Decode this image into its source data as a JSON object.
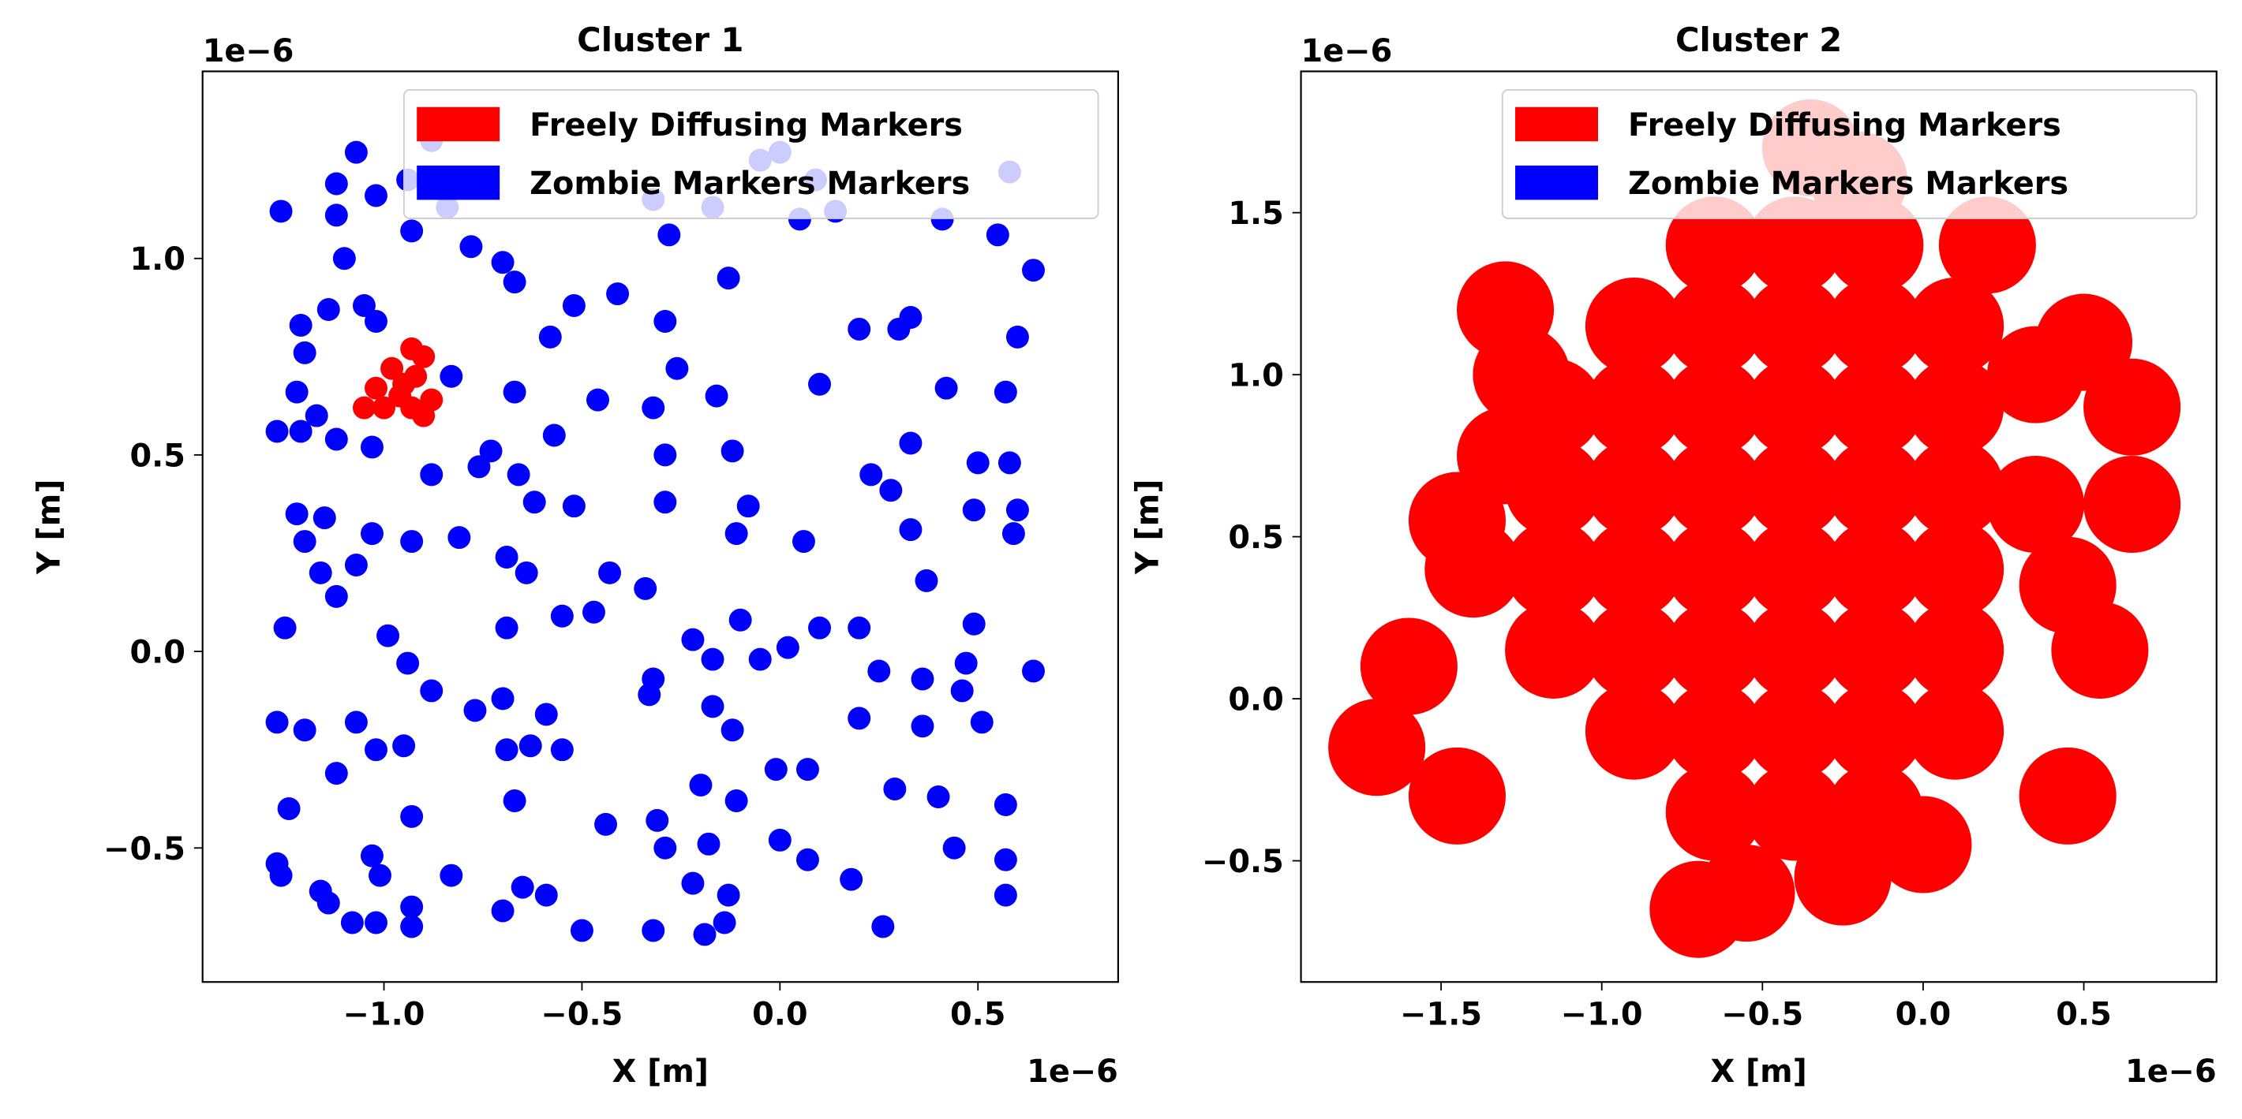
{
  "chart_data": [
    {
      "type": "scatter",
      "title": "Cluster 1",
      "xlabel": "X [m]",
      "ylabel": "Y [m]",
      "x_offset_text": "1e−6",
      "y_offset_text": "1e−6",
      "xlim": [
        -1.458,
        0.854
      ],
      "ylim": [
        -0.841,
        1.476
      ],
      "xticks": [
        {
          "value": -1.0,
          "label": "−1.0"
        },
        {
          "value": -0.5,
          "label": "−0.5"
        },
        {
          "value": 0.0,
          "label": "0.0"
        },
        0.5
      ],
      "yticks": [
        {
          "value": -0.5,
          "label": "−0.5"
        },
        {
          "value": 0.0,
          "label": "0.0"
        },
        0.5,
        {
          "value": 1.0,
          "label": "1.0"
        }
      ],
      "legend": "upper right",
      "series": [
        {
          "name": "Freely Diffusing Markers",
          "color": "#ff0000",
          "x": [
            -1.05,
            -1.02,
            -0.98,
            -0.96,
            -0.93,
            -0.9,
            -0.92,
            -0.93,
            -0.9,
            -0.88,
            -1.0,
            -0.95
          ],
          "y": [
            0.62,
            0.67,
            0.72,
            0.65,
            0.62,
            0.6,
            0.7,
            0.77,
            0.75,
            0.64,
            0.62,
            0.68
          ]
        },
        {
          "name": "Zombie Markers Markers",
          "color": "#0000ff",
          "x": [
            -1.07,
            -1.26,
            -1.12,
            -1.02,
            -0.94,
            -0.88,
            -0.84,
            -1.12,
            -1.1,
            -1.14,
            -1.21,
            -1.05,
            -1.02,
            -0.93,
            -0.78,
            -0.7,
            -0.67,
            -0.58,
            -0.52,
            -0.41,
            -0.32,
            -0.28,
            -0.29,
            -0.17,
            -0.13,
            -0.05,
            0.0,
            0.05,
            0.09,
            0.2,
            0.14,
            0.3,
            0.33,
            0.41,
            0.42,
            0.55,
            0.58,
            0.64,
            0.6,
            0.57,
            -1.2,
            -1.22,
            -1.17,
            -1.27,
            -1.21,
            -1.12,
            -1.03,
            -0.88,
            -0.76,
            -0.66,
            -0.57,
            -0.46,
            -0.52,
            -0.62,
            -0.73,
            -0.67,
            -0.83,
            -0.32,
            -0.29,
            -0.26,
            -0.16,
            -0.12,
            -0.08,
            -0.11,
            0.06,
            0.1,
            0.23,
            0.28,
            0.33,
            0.33,
            0.5,
            0.58,
            0.49,
            0.6,
            0.59,
            -1.22,
            -1.15,
            -1.2,
            -1.03,
            -0.93,
            -0.81,
            -0.69,
            -0.64,
            -0.43,
            -0.34,
            -0.29,
            -1.16,
            -1.12,
            -1.07,
            -1.25,
            -0.99,
            -0.94,
            -0.88,
            -0.69,
            -0.55,
            -0.47,
            -0.32,
            -0.22,
            -0.17,
            -0.1,
            -0.05,
            0.02,
            0.1,
            0.2,
            0.25,
            0.36,
            0.49,
            0.47,
            0.64,
            0.46,
            0.37,
            -1.27,
            -1.2,
            -1.07,
            -1.02,
            -0.95,
            -0.77,
            -0.7,
            -0.69,
            -0.63,
            -0.55,
            -0.59,
            -0.33,
            -0.17,
            -0.12,
            -0.01,
            0.07,
            0.2,
            0.36,
            0.51,
            -1.12,
            -1.24,
            -0.93,
            -0.67,
            -0.44,
            -0.31,
            -0.2,
            -0.18,
            -0.11,
            0.0,
            0.07,
            0.18,
            0.29,
            0.4,
            0.44,
            0.57,
            0.57,
            -1.27,
            -1.26,
            -1.16,
            -1.14,
            -1.03,
            -1.01,
            -1.08,
            -1.02,
            -0.93,
            -0.93,
            -0.83,
            -0.7,
            -0.65,
            -0.59,
            -0.5,
            -0.32,
            -0.29,
            -0.22,
            -0.13,
            -0.19,
            -0.14,
            0.26,
            0.57
          ],
          "y": [
            1.27,
            1.12,
            1.19,
            1.16,
            1.2,
            1.3,
            1.13,
            1.11,
            1.0,
            0.87,
            0.83,
            0.88,
            0.84,
            1.07,
            1.03,
            0.99,
            0.94,
            0.8,
            0.88,
            0.91,
            1.15,
            1.06,
            0.84,
            1.13,
            0.95,
            1.25,
            1.27,
            1.1,
            1.2,
            0.82,
            1.12,
            0.82,
            0.85,
            1.1,
            0.67,
            1.06,
            1.22,
            0.97,
            0.8,
            0.66,
            0.76,
            0.66,
            0.6,
            0.56,
            0.56,
            0.54,
            0.52,
            0.45,
            0.47,
            0.45,
            0.55,
            0.64,
            0.37,
            0.38,
            0.51,
            0.66,
            0.7,
            0.62,
            0.5,
            0.72,
            0.65,
            0.51,
            0.37,
            0.3,
            0.28,
            0.68,
            0.45,
            0.41,
            0.53,
            0.31,
            0.48,
            0.48,
            0.36,
            0.36,
            0.3,
            0.35,
            0.34,
            0.28,
            0.3,
            0.28,
            0.29,
            0.24,
            0.2,
            0.2,
            0.16,
            0.38,
            0.2,
            0.14,
            0.22,
            0.06,
            0.04,
            -0.03,
            -0.1,
            0.06,
            0.09,
            0.1,
            -0.07,
            0.03,
            -0.02,
            0.08,
            -0.02,
            0.01,
            0.06,
            0.06,
            -0.05,
            -0.07,
            0.07,
            -0.03,
            -0.05,
            -0.1,
            0.18,
            -0.18,
            -0.2,
            -0.18,
            -0.25,
            -0.24,
            -0.15,
            -0.12,
            -0.25,
            -0.24,
            -0.25,
            -0.16,
            -0.11,
            -0.14,
            -0.2,
            -0.3,
            -0.3,
            -0.17,
            -0.19,
            -0.18,
            -0.31,
            -0.4,
            -0.42,
            -0.38,
            -0.44,
            -0.43,
            -0.34,
            -0.49,
            -0.38,
            -0.48,
            -0.53,
            -0.58,
            -0.35,
            -0.37,
            -0.5,
            -0.39,
            -0.53,
            -0.54,
            -0.57,
            -0.61,
            -0.64,
            -0.52,
            -0.57,
            -0.69,
            -0.69,
            -0.65,
            -0.7,
            -0.57,
            -0.66,
            -0.6,
            -0.62,
            -0.71,
            -0.71,
            -0.5,
            -0.59,
            -0.62,
            -0.72,
            -0.69,
            -0.7,
            -0.62
          ]
        }
      ]
    },
    {
      "type": "scatter",
      "title": "Cluster 2",
      "xlabel": "X [m]",
      "ylabel": "Y [m]",
      "x_offset_text": "1e−6",
      "y_offset_text": "1e−6",
      "xlim": [
        -1.936,
        0.913
      ],
      "ylim": [
        -0.874,
        1.936
      ],
      "xticks": [
        {
          "value": -1.5,
          "label": "−1.5"
        },
        {
          "value": -1.0,
          "label": "−1.0"
        },
        {
          "value": -0.5,
          "label": "−0.5"
        },
        {
          "value": 0.0,
          "label": "0.0"
        },
        0.5
      ],
      "yticks": [
        {
          "value": -0.5,
          "label": "−0.5"
        },
        {
          "value": 0.0,
          "label": "0.0"
        },
        0.5,
        {
          "value": 1.0,
          "label": "1.0"
        },
        1.5
      ],
      "legend": "upper right",
      "series": [
        {
          "name": "Freely Diffusing Markers",
          "color": "#ff0000",
          "x": [
            -0.65,
            -0.4,
            -0.15,
            -0.9,
            -0.65,
            -0.4,
            -0.15,
            0.1,
            -1.15,
            -0.9,
            -0.65,
            -0.4,
            -0.15,
            0.1,
            -1.15,
            -0.9,
            -0.65,
            -0.4,
            -0.15,
            0.1,
            -1.15,
            -0.9,
            -0.65,
            -0.4,
            -0.15,
            0.1,
            -1.15,
            -0.9,
            -0.65,
            -0.4,
            -0.15,
            0.1,
            -0.9,
            -0.65,
            -0.4,
            -0.15,
            0.1,
            -0.65,
            -0.4,
            -0.15,
            -1.6,
            -1.7,
            -1.45,
            -1.4,
            -1.25,
            -1.3,
            -1.45,
            -0.2,
            -0.35,
            0.2,
            0.5,
            0.65,
            0.65,
            0.45,
            0.55,
            0.45,
            -0.7,
            -0.55,
            -0.25,
            0.0,
            0.35,
            0.35,
            -1.3
          ],
          "y": [
            1.4,
            1.4,
            1.4,
            1.15,
            1.15,
            1.15,
            1.15,
            1.15,
            0.9,
            0.9,
            0.9,
            0.9,
            0.9,
            0.9,
            0.65,
            0.65,
            0.65,
            0.65,
            0.65,
            0.65,
            0.4,
            0.4,
            0.4,
            0.4,
            0.4,
            0.4,
            0.15,
            0.15,
            0.15,
            0.15,
            0.15,
            0.15,
            -0.1,
            -0.1,
            -0.1,
            -0.1,
            -0.1,
            -0.35,
            -0.35,
            -0.35,
            0.1,
            -0.15,
            -0.3,
            0.4,
            1.0,
            1.2,
            0.55,
            1.6,
            1.7,
            1.4,
            1.1,
            0.9,
            0.6,
            0.35,
            0.15,
            -0.3,
            -0.65,
            -0.6,
            -0.55,
            -0.45,
            0.6,
            1.0,
            0.75
          ]
        },
        {
          "name": "Zombie Markers Markers",
          "color": "#0000ff",
          "x": [],
          "y": []
        }
      ]
    }
  ]
}
